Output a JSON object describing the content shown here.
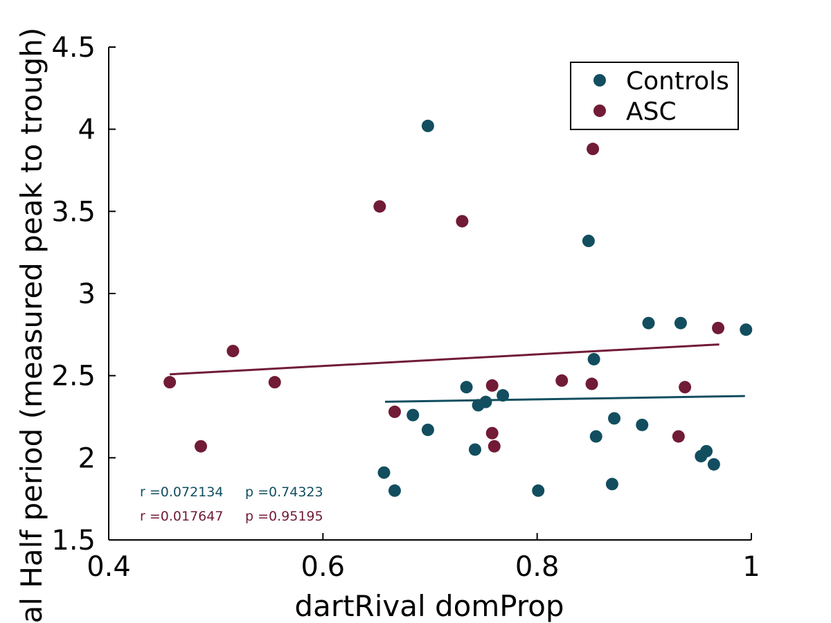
{
  "chart_data": {
    "type": "scatter",
    "xlabel": "dartRival domProp",
    "ylabel": "al Half period (measured peak to trough)",
    "xlim": [
      0.4,
      1.0
    ],
    "ylim": [
      1.5,
      4.5
    ],
    "x_ticks": [
      0.4,
      0.6,
      0.8,
      1.0
    ],
    "x_tick_labels": [
      "0.4",
      "0.6",
      "0.8",
      "1"
    ],
    "y_ticks": [
      1.5,
      2.0,
      2.5,
      3.0,
      3.5,
      4.0,
      4.5
    ],
    "y_tick_labels": [
      "1.5",
      "2",
      "2.5",
      "3",
      "3.5",
      "4",
      "4.5"
    ],
    "grid": false,
    "legend_position": "top-right",
    "series": [
      {
        "name": "Controls",
        "color": "#124e5f",
        "points": [
          [
            0.698,
            4.02
          ],
          [
            0.848,
            3.32
          ],
          [
            0.904,
            2.82
          ],
          [
            0.934,
            2.82
          ],
          [
            0.995,
            2.78
          ],
          [
            0.853,
            2.6
          ],
          [
            0.734,
            2.43
          ],
          [
            0.768,
            2.38
          ],
          [
            0.752,
            2.34
          ],
          [
            0.745,
            2.32
          ],
          [
            0.684,
            2.26
          ],
          [
            0.698,
            2.17
          ],
          [
            0.742,
            2.05
          ],
          [
            0.872,
            2.24
          ],
          [
            0.898,
            2.2
          ],
          [
            0.855,
            2.13
          ],
          [
            0.958,
            2.04
          ],
          [
            0.953,
            2.01
          ],
          [
            0.965,
            1.96
          ],
          [
            0.657,
            1.91
          ],
          [
            0.667,
            1.8
          ],
          [
            0.801,
            1.8
          ],
          [
            0.87,
            1.84
          ]
        ],
        "fit": {
          "x": [
            0.658,
            0.994
          ],
          "y": [
            2.341,
            2.376
          ]
        },
        "stats": {
          "r": "r =0.072134",
          "p": "p =0.74323"
        }
      },
      {
        "name": "ASC",
        "color": "#711b36",
        "points": [
          [
            0.852,
            3.88
          ],
          [
            0.653,
            3.53
          ],
          [
            0.73,
            3.44
          ],
          [
            0.969,
            2.79
          ],
          [
            0.516,
            2.65
          ],
          [
            0.457,
            2.46
          ],
          [
            0.555,
            2.46
          ],
          [
            0.823,
            2.47
          ],
          [
            0.851,
            2.45
          ],
          [
            0.758,
            2.44
          ],
          [
            0.938,
            2.43
          ],
          [
            0.667,
            2.28
          ],
          [
            0.758,
            2.15
          ],
          [
            0.932,
            2.13
          ],
          [
            0.486,
            2.07
          ],
          [
            0.76,
            2.07
          ]
        ],
        "fit": {
          "x": [
            0.457,
            0.97
          ],
          "y": [
            2.508,
            2.69
          ]
        },
        "stats": {
          "r": "r =0.017647",
          "p": "p =0.95195"
        }
      }
    ]
  }
}
